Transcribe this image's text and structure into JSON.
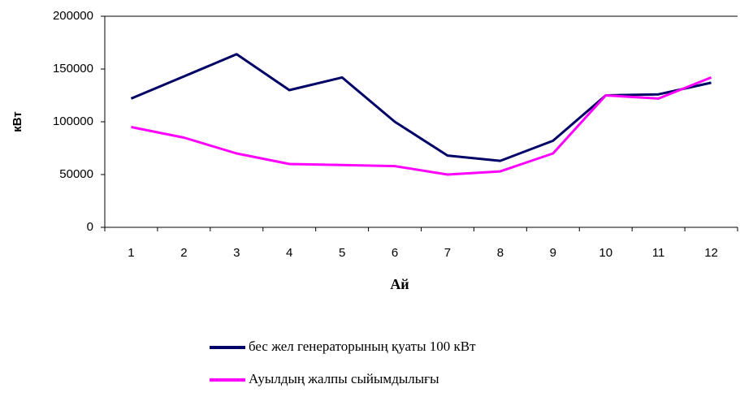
{
  "chart_data": {
    "type": "line",
    "y_label": "кВт",
    "x_label": "Ай",
    "categories": [
      "1",
      "2",
      "3",
      "4",
      "5",
      "6",
      "7",
      "8",
      "9",
      "10",
      "11",
      "12"
    ],
    "series": [
      {
        "name": "бес жел генераторының қуаты 100 кВт",
        "color": "#000066",
        "values": [
          122000,
          143000,
          164000,
          130000,
          142000,
          100000,
          68000,
          63000,
          82000,
          125000,
          126000,
          137000
        ]
      },
      {
        "name": "Ауылдың жалпы сыйымдылығы",
        "color": "#ff00ff",
        "values": [
          95000,
          85000,
          70000,
          60000,
          59000,
          58000,
          50000,
          53000,
          70000,
          125000,
          122000,
          142000
        ]
      }
    ],
    "ylim": [
      0,
      200000
    ],
    "yticks": [
      0,
      50000,
      100000,
      150000,
      200000
    ],
    "grid": false
  }
}
